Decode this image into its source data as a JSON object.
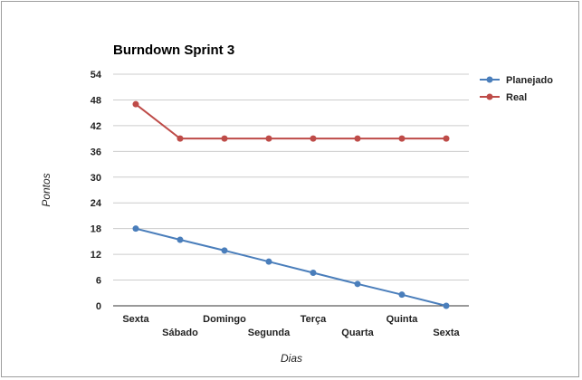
{
  "chart_data": {
    "type": "line",
    "title": "Burndown Sprint 3",
    "xlabel": "Dias",
    "ylabel": "Pontos",
    "categories": [
      "Sexta",
      "Sábado",
      "Domingo",
      "Segunda",
      "Terça",
      "Quarta",
      "Quinta",
      "Sexta"
    ],
    "ylim": [
      0,
      54
    ],
    "yticks": [
      0,
      6,
      12,
      18,
      24,
      30,
      36,
      42,
      48,
      54
    ],
    "grid": true,
    "legend_position": "right",
    "series": [
      {
        "name": "Planejado",
        "color": "#4a7ebb",
        "values": [
          18,
          15.4,
          12.9,
          10.3,
          7.7,
          5.1,
          2.6,
          0
        ]
      },
      {
        "name": "Real",
        "color": "#be4b48",
        "values": [
          47,
          39,
          39,
          39,
          39,
          39,
          39,
          39
        ]
      }
    ]
  }
}
